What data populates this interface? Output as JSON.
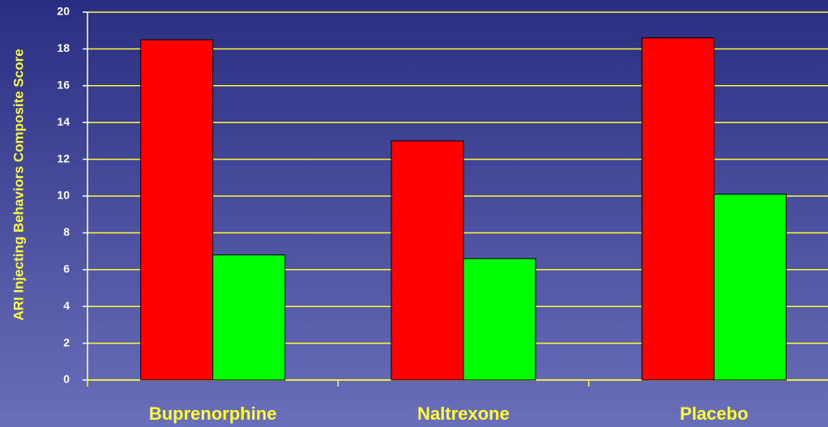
{
  "chart_data": {
    "type": "bar",
    "y_label": "ARI Injecting Behaviors Composite Score",
    "categories": [
      "Buprenorphine",
      "Naltrexone",
      "Placebo"
    ],
    "series": [
      {
        "color": "#ff0000",
        "values": [
          18.5,
          13.0,
          18.6
        ]
      },
      {
        "color": "#00ff00",
        "values": [
          6.8,
          6.6,
          10.1
        ]
      }
    ],
    "ylim": [
      0,
      20
    ],
    "yticks": [
      0,
      2,
      4,
      6,
      8,
      10,
      12,
      14,
      16,
      18,
      20
    ],
    "grid": true,
    "grid_color": "#ffff33"
  }
}
